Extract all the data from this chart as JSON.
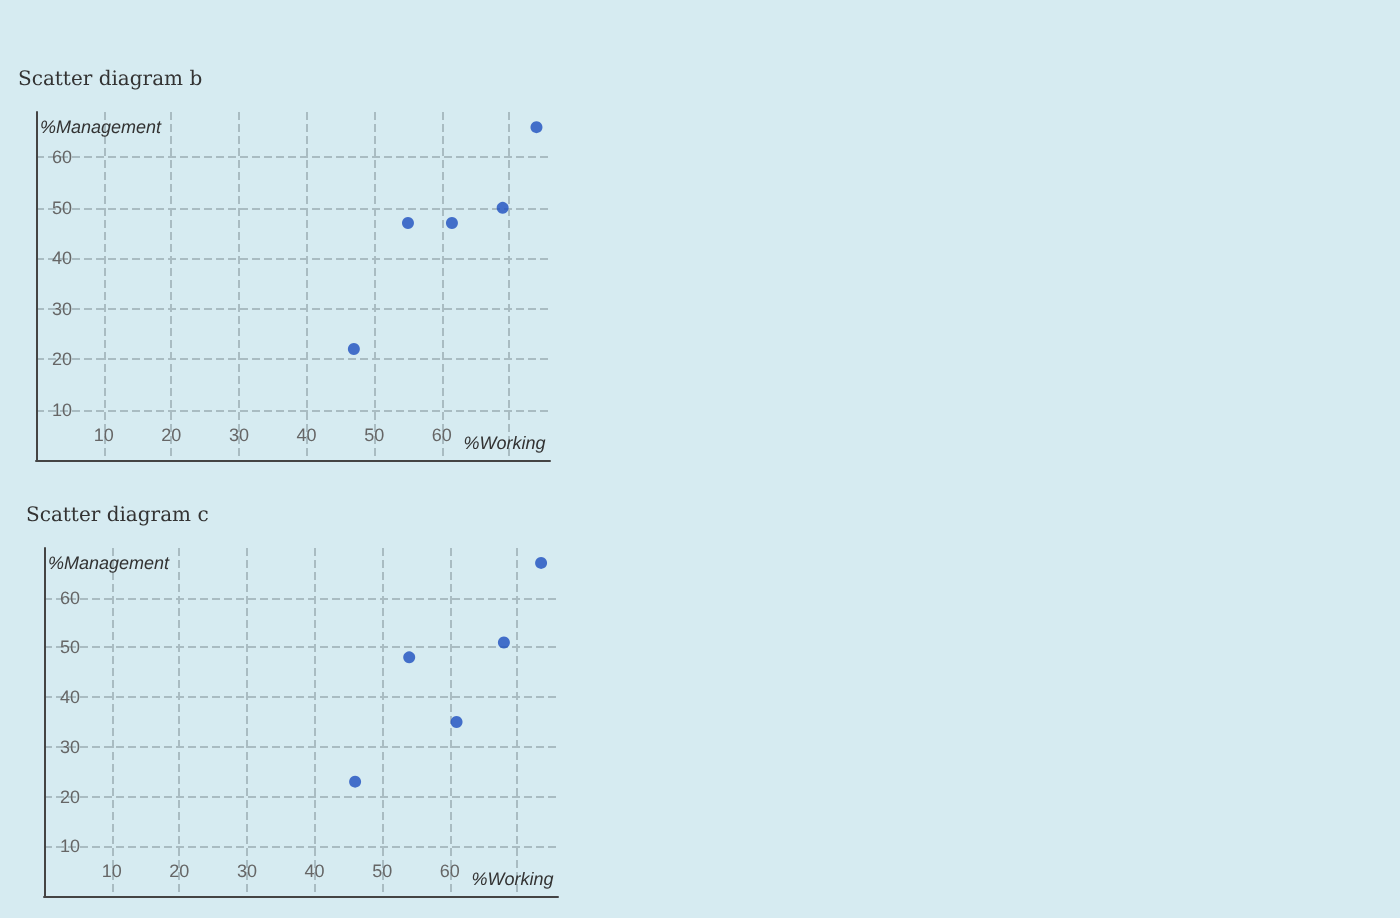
{
  "chart_data": [
    {
      "type": "scatter",
      "title": "Scatter diagram b",
      "xlabel": "%Working",
      "ylabel": "%Management",
      "x": [
        47,
        55,
        61.5,
        69,
        74
      ],
      "series": [
        {
          "color": "#1d4fbf",
          "values": [
            22,
            47,
            47,
            50,
            66
          ]
        }
      ],
      "xlim": [
        0,
        76
      ],
      "xticks": [
        10,
        20,
        30,
        40,
        50,
        60,
        {
          "value": 70,
          "label": null
        }
      ],
      "ylim": [
        0,
        69
      ],
      "yticks": [
        10,
        20,
        30,
        40,
        50,
        60
      ],
      "grid": true,
      "marker": "circle"
    },
    {
      "type": "scatter",
      "title": "Scatter diagram c",
      "xlabel": "%Working",
      "ylabel": "%Management",
      "x": [
        46,
        54,
        61,
        68,
        73.5
      ],
      "series": [
        {
          "color": "#1d4fbf",
          "values": [
            23,
            48,
            35,
            51,
            67
          ]
        }
      ],
      "xlim": [
        0,
        76
      ],
      "xticks": [
        10,
        20,
        30,
        40,
        50,
        60,
        {
          "value": 70,
          "label": null
        }
      ],
      "ylim": [
        0,
        70
      ],
      "yticks": [
        10,
        20,
        30,
        40,
        50,
        60
      ],
      "grid": true,
      "marker": "circle"
    }
  ]
}
